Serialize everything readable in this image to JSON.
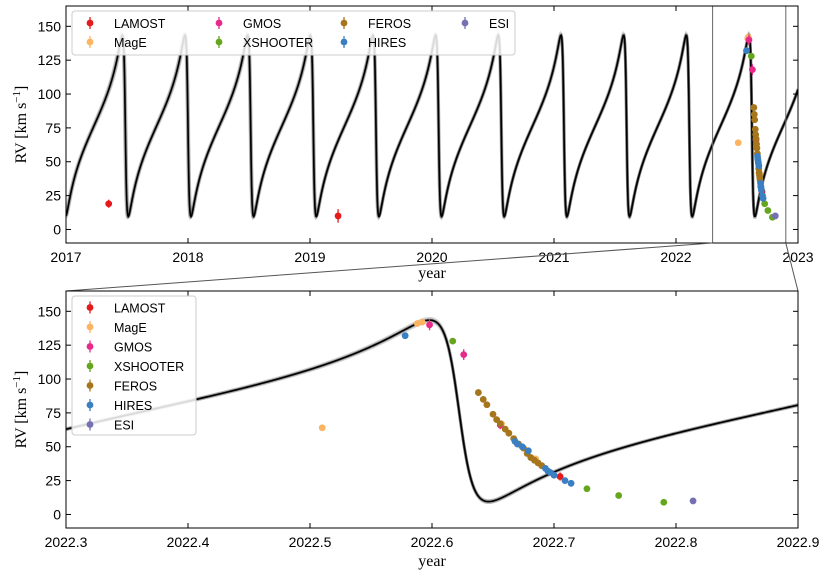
{
  "chart_data": [
    {
      "id": "top",
      "type": "scatter",
      "xlabel": "year",
      "ylabel": "RV [km s⁻¹]",
      "ylabel_main": "RV [km s",
      "ylabel_sup": "−1",
      "ylabel_close": "]",
      "xlim": [
        2017,
        2023
      ],
      "ylim": [
        -10,
        165
      ],
      "xticks": [
        2017,
        2018,
        2019,
        2020,
        2021,
        2022,
        2023
      ],
      "xtick_labels": [
        "2017",
        "2018",
        "2019",
        "2020",
        "2021",
        "2022",
        "2023"
      ],
      "yticks": [
        0,
        25,
        50,
        75,
        100,
        125,
        150
      ],
      "ytick_labels": [
        "0",
        "25",
        "50",
        "75",
        "100",
        "125",
        "150"
      ],
      "zoom_window": [
        2022.3,
        2022.9
      ],
      "legend": {
        "location": "upper-left",
        "ncol": 4
      },
      "model": {
        "period_yr": 0.5136,
        "t_peak": 2022.598,
        "k": 67,
        "gamma": 76.5,
        "e": 0.7,
        "omega_deg": 90
      }
    },
    {
      "id": "bottom",
      "type": "scatter",
      "xlabel": "year",
      "ylabel": "RV [km s⁻¹]",
      "ylabel_main": "RV [km s",
      "ylabel_sup": "−1",
      "ylabel_close": "]",
      "xlim": [
        2022.3,
        2022.9
      ],
      "ylim": [
        -10,
        165
      ],
      "xticks": [
        2022.3,
        2022.4,
        2022.5,
        2022.6,
        2022.7,
        2022.8,
        2022.9
      ],
      "xtick_labels": [
        "2022.3",
        "2022.4",
        "2022.5",
        "2022.6",
        "2022.7",
        "2022.8",
        "2022.9"
      ],
      "yticks": [
        0,
        25,
        50,
        75,
        100,
        125,
        150
      ],
      "ytick_labels": [
        "0",
        "25",
        "50",
        "75",
        "100",
        "125",
        "150"
      ],
      "legend": {
        "location": "upper-left",
        "ncol": 1
      }
    }
  ],
  "series": [
    {
      "name": "LAMOST",
      "color": "#e41a1c",
      "points": [
        [
          2017.35,
          19,
          3
        ],
        [
          2019.23,
          10,
          5
        ],
        [
          2022.705,
          28,
          3
        ]
      ]
    },
    {
      "name": "MagE",
      "color": "#fdb462",
      "points": [
        [
          2022.51,
          64,
          0
        ],
        [
          2022.588,
          141,
          0
        ],
        [
          2022.592,
          142,
          0
        ],
        [
          2022.657,
          67,
          0
        ],
        [
          2022.685,
          41,
          0
        ]
      ]
    },
    {
      "name": "GMOS",
      "color": "#e7298a",
      "points": [
        [
          2022.598,
          140,
          4
        ],
        [
          2022.626,
          118,
          4
        ],
        [
          2022.656,
          66,
          3
        ]
      ]
    },
    {
      "name": "XSHOOTER",
      "color": "#66a61e",
      "points": [
        [
          2022.617,
          128,
          0
        ],
        [
          2022.727,
          19,
          0
        ],
        [
          2022.753,
          14,
          0
        ],
        [
          2022.79,
          9,
          0
        ]
      ]
    },
    {
      "name": "FEROS",
      "color": "#a6761d",
      "points": [
        [
          2022.638,
          90,
          0
        ],
        [
          2022.642,
          85,
          0
        ],
        [
          2022.645,
          81,
          0
        ],
        [
          2022.65,
          74,
          0
        ],
        [
          2022.653,
          70,
          0
        ],
        [
          2022.656,
          67,
          0
        ],
        [
          2022.66,
          63,
          0
        ],
        [
          2022.663,
          60,
          0
        ],
        [
          2022.667,
          56,
          0
        ],
        [
          2022.671,
          52,
          0
        ],
        [
          2022.675,
          49,
          0
        ],
        [
          2022.678,
          45,
          0
        ],
        [
          2022.681,
          42,
          0
        ],
        [
          2022.684,
          40,
          0
        ],
        [
          2022.687,
          38,
          0
        ],
        [
          2022.69,
          36,
          0
        ]
      ]
    },
    {
      "name": "HIRES",
      "color": "#3a7fc1",
      "points": [
        [
          2022.578,
          132,
          0
        ],
        [
          2022.668,
          54,
          0
        ],
        [
          2022.67,
          52,
          0
        ],
        [
          2022.674,
          50,
          0
        ],
        [
          2022.679,
          47,
          0
        ],
        [
          2022.693,
          34,
          0
        ],
        [
          2022.695,
          32,
          0
        ],
        [
          2022.697,
          31,
          0
        ],
        [
          2022.7,
          29,
          0
        ],
        [
          2022.709,
          25,
          0
        ],
        [
          2022.714,
          23,
          0
        ]
      ]
    },
    {
      "name": "ESI",
      "color": "#7570b3",
      "points": [
        [
          2022.814,
          10,
          0
        ]
      ]
    }
  ]
}
